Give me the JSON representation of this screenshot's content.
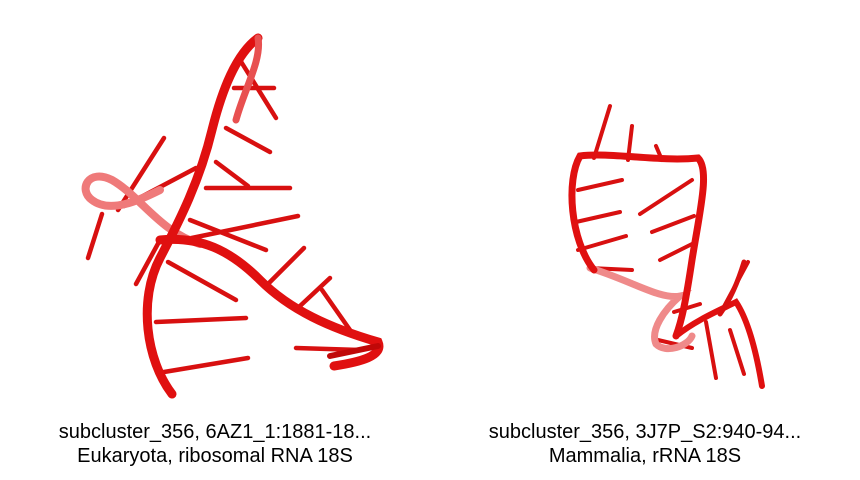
{
  "colors": {
    "backbone": "#dd0a0a",
    "backbone_light": "#f08080",
    "background": "#ffffff",
    "text": "#000000"
  },
  "panels": [
    {
      "caption_line1": "subcluster_356, 6AZ1_1:1881-18...",
      "caption_line2": "Eukaryota, ribosomal RNA 18S"
    },
    {
      "caption_line1": "subcluster_356, 3J7P_S2:940-94...",
      "caption_line2": "Mammalia, rRNA 18S"
    }
  ]
}
